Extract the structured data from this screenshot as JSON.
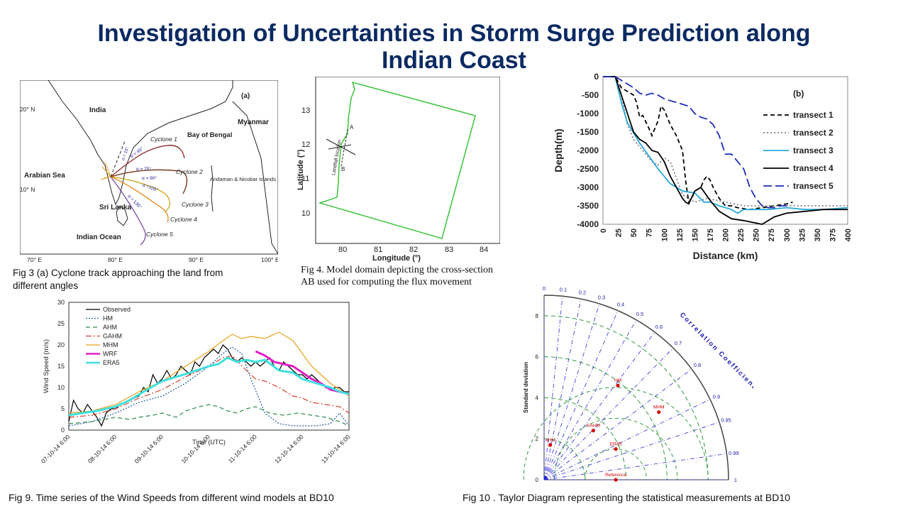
{
  "slide": {
    "title_line1": "Investigation of Uncertainties in Storm Surge Prediction along",
    "title_line2": "Indian Coast"
  },
  "fig3": {
    "caption": "Fig 3 (a) Cyclone track approaching the land from different angles",
    "panel_label": "(a)",
    "lat_ticks": [
      "20° N",
      "10° N"
    ],
    "lon_ticks": [
      "70° E",
      "80° E",
      "90° E",
      "100° E"
    ],
    "places": [
      "India",
      "Myanmar",
      "Bay of Bengal",
      "Arabian Sea",
      "Sri Lanka",
      "Indian Ocean",
      "Andaman & Nicobar Islands"
    ],
    "cyclones": [
      "Cyclone 1",
      "Cyclone 2",
      "Cyclone 3",
      "Cyclone 4",
      "Cyclone 5"
    ],
    "angles": [
      "α = 15°",
      "α = 45°",
      "α = 75°",
      "α = 90°",
      "α =105°",
      "α = 135°"
    ],
    "colors": {
      "c1": "#8b1a1a",
      "c2": "#6b2c10",
      "c3": "#c8a41a",
      "c4": "#e08a1a",
      "c5": "#7b4aa8",
      "land": "#ffffff"
    }
  },
  "fig4": {
    "caption": "Fig 4. Model domain depicting the cross-section AB used for computing the flux movement",
    "xlabel": "Longitude (°)",
    "ylabel": "Latitude (°)",
    "x_ticks": [
      "80",
      "81",
      "82",
      "83",
      "84"
    ],
    "y_ticks": [
      "13",
      "12",
      "11",
      "10"
    ],
    "landfall_label": "Landfall location",
    "point_a": "A",
    "point_b": "B",
    "domain_color": "#2dbf2d"
  },
  "depth_chart": {
    "caption_label": "(b)",
    "chart_data": {
      "type": "line",
      "xlabel": "Distance (km)",
      "ylabel": "Depth(m)",
      "xlim": [
        0,
        400
      ],
      "ylim": [
        -4000,
        0
      ],
      "x_ticks": [
        0,
        25,
        50,
        75,
        100,
        125,
        150,
        175,
        200,
        225,
        250,
        275,
        300,
        325,
        350,
        375,
        400
      ],
      "y_ticks": [
        0,
        -500,
        -1000,
        -1500,
        -2000,
        -2500,
        -3000,
        -3500,
        -4000
      ],
      "legend_position": "right",
      "series": [
        {
          "name": "transect 1",
          "color": "#000000",
          "dash": "6,4",
          "x": [
            0,
            20,
            30,
            40,
            50,
            55,
            60,
            65,
            75,
            80,
            85,
            90,
            95,
            100,
            110,
            120,
            130,
            135,
            140,
            145,
            150,
            160,
            165,
            170,
            175,
            180,
            190,
            200,
            210,
            220,
            240,
            260,
            280,
            300,
            310
          ],
          "y": [
            0,
            0,
            -300,
            -400,
            -500,
            -700,
            -1100,
            -1050,
            -1400,
            -1600,
            -1400,
            -1200,
            -800,
            -900,
            -1300,
            -1600,
            -2000,
            -2800,
            -3400,
            -3300,
            -3100,
            -3000,
            -2800,
            -2700,
            -2800,
            -3000,
            -3300,
            -3500,
            -3500,
            -3550,
            -3600,
            -3550,
            -3500,
            -3450,
            -3400
          ]
        },
        {
          "name": "transect 2",
          "color": "#808080",
          "dash": "2,3",
          "x": [
            0,
            20,
            30,
            40,
            50,
            60,
            80,
            90,
            100,
            110,
            130,
            150,
            170,
            200,
            230,
            260,
            300,
            350,
            400
          ],
          "y": [
            0,
            0,
            -500,
            -1300,
            -1700,
            -1900,
            -2300,
            -2400,
            -2200,
            -2300,
            -3200,
            -3400,
            -3300,
            -3400,
            -3500,
            -3500,
            -3500,
            -3500,
            -3500
          ]
        },
        {
          "name": "transect 3",
          "color": "#29a8d8",
          "dash": "",
          "x": [
            0,
            20,
            30,
            40,
            60,
            90,
            110,
            130,
            150,
            165,
            175,
            190,
            210,
            220,
            230,
            250,
            270,
            300,
            330,
            360,
            400
          ],
          "y": [
            0,
            0,
            -700,
            -1250,
            -1800,
            -2500,
            -2900,
            -3100,
            -3150,
            -3400,
            -3400,
            -3500,
            -3600,
            -3700,
            -3600,
            -3600,
            -3600,
            -3550,
            -3600,
            -3600,
            -3550
          ]
        },
        {
          "name": "transect 4",
          "color": "#000000",
          "dash": "",
          "x": [
            0,
            20,
            30,
            40,
            50,
            60,
            70,
            80,
            90,
            100,
            110,
            120,
            130,
            135,
            140,
            150,
            160,
            175,
            190,
            210,
            230,
            260,
            280,
            300,
            330,
            360,
            400
          ],
          "y": [
            0,
            0,
            -500,
            -1000,
            -1500,
            -1700,
            -1800,
            -2000,
            -2050,
            -2300,
            -2700,
            -3000,
            -3300,
            -3400,
            -3450,
            -3100,
            -3000,
            -3350,
            -3650,
            -3850,
            -3900,
            -4000,
            -3800,
            -3700,
            -3650,
            -3600,
            -3600
          ]
        },
        {
          "name": "transect 5",
          "color": "#1f2fb8",
          "dash": "12,5",
          "x": [
            0,
            20,
            30,
            40,
            50,
            60,
            70,
            80,
            90,
            100,
            110,
            120,
            140,
            150,
            160,
            170,
            180,
            190,
            200,
            210,
            220,
            230,
            240,
            250,
            260,
            270,
            280,
            290,
            300
          ],
          "y": [
            0,
            0,
            -100,
            -200,
            -300,
            -450,
            -500,
            -450,
            -500,
            -600,
            -650,
            -700,
            -800,
            -1000,
            -1100,
            -1150,
            -1300,
            -1600,
            -2100,
            -2100,
            -2300,
            -2500,
            -3000,
            -3300,
            -3500,
            -3550,
            -3550,
            -3500,
            -3500
          ]
        }
      ]
    }
  },
  "wind_chart": {
    "caption": "Fig 9.  Time series of the Wind Speeds from different wind models at BD10",
    "chart_data": {
      "type": "line",
      "xlabel": "Time (UTC)",
      "ylabel": "Wind Speed (m/s)",
      "ylim": [
        0,
        30
      ],
      "y_ticks": [
        0,
        5,
        10,
        15,
        20,
        25,
        30
      ],
      "x_ticks": [
        "07-10-14 6:00",
        "08-10-14 6:00",
        "09-10-14 6:00",
        "10-10-14 6:00",
        "11-10-14 6:00",
        "12-10-14 6:00",
        "13-10-14 6:00"
      ],
      "xlim_days": [
        0,
        6
      ],
      "legend_position": "top-left",
      "series": [
        {
          "name": "Observed",
          "color": "#000000",
          "dash": "",
          "x": [
            0,
            0.1,
            0.2,
            0.3,
            0.4,
            0.5,
            0.6,
            0.7,
            0.8,
            0.9,
            1.0,
            1.1,
            1.2,
            1.3,
            1.4,
            1.5,
            1.6,
            1.7,
            1.8,
            1.9,
            2.0,
            2.1,
            2.2,
            2.3,
            2.4,
            2.5,
            2.6,
            2.7,
            2.8,
            2.9,
            3.0,
            3.1,
            3.2,
            3.3,
            3.4,
            3.5,
            3.6,
            3.7,
            3.8,
            3.9,
            4.0,
            4.1,
            4.2,
            4.3,
            4.4,
            4.5,
            4.6,
            4.7,
            4.8,
            4.9,
            5.0,
            5.1,
            5.2,
            5.3,
            5.4,
            5.5,
            5.6,
            5.7,
            5.8,
            5.9,
            6.0
          ],
          "y": [
            2,
            7,
            5,
            4,
            6,
            4.5,
            3,
            1,
            4,
            5,
            5,
            6,
            6.5,
            7,
            7.5,
            8,
            10,
            9,
            13,
            11,
            12,
            14,
            12,
            13,
            15,
            14,
            13,
            16,
            15,
            17,
            18,
            19,
            18,
            20,
            19,
            17,
            16,
            17,
            16,
            15,
            16,
            15,
            16,
            17,
            15,
            14,
            16,
            15,
            14,
            13,
            13,
            12,
            13,
            12,
            11,
            10,
            9.5,
            10,
            10,
            9,
            9
          ]
        },
        {
          "name": "HM",
          "color": "#1f5fa8",
          "dash": "2,2",
          "x": [
            0,
            0.5,
            1.0,
            1.5,
            2.0,
            2.5,
            3.0,
            3.3,
            3.5,
            3.7,
            3.9,
            4.2,
            4.5,
            4.8,
            5.0,
            5.3,
            5.6,
            5.8,
            6.0
          ],
          "y": [
            1,
            2,
            4,
            6.5,
            8,
            11,
            15,
            18,
            19.5,
            18,
            12,
            4,
            1.5,
            1,
            1,
            1,
            1.5,
            4,
            1
          ]
        },
        {
          "name": "AHM",
          "color": "#2e8b4a",
          "dash": "6,4",
          "x": [
            0,
            0.5,
            1.0,
            1.3,
            1.5,
            1.8,
            2.0,
            2.3,
            2.5,
            2.8,
            3.0,
            3.2,
            3.4,
            3.6,
            3.8,
            4.0,
            4.3,
            4.6,
            4.9,
            5.2,
            5.5,
            5.8,
            6.0
          ],
          "y": [
            1.5,
            2,
            3,
            2.5,
            3,
            3.5,
            4,
            3,
            4.5,
            5.5,
            6,
            5.5,
            4.5,
            4,
            5,
            5.5,
            4,
            3.5,
            4,
            3.5,
            3,
            2,
            1
          ]
        },
        {
          "name": "GAHM",
          "color": "#d2402b",
          "dash": "8,3,2,3",
          "x": [
            0,
            0.5,
            1.0,
            1.5,
            2.0,
            2.5,
            3.0,
            3.3,
            3.5,
            3.8,
            4.0,
            4.2,
            4.5,
            4.8,
            5.0,
            5.2,
            5.5,
            5.8,
            6.0
          ],
          "y": [
            3,
            3.5,
            5,
            7.5,
            9.5,
            12.5,
            15,
            17,
            17.5,
            14,
            12,
            11.5,
            10,
            8,
            7.5,
            6.5,
            6,
            5.5,
            4
          ]
        },
        {
          "name": "MHM",
          "color": "#e8a21a",
          "dash": "",
          "x": [
            0,
            0.5,
            1.0,
            1.5,
            2.0,
            2.5,
            3.0,
            3.3,
            3.5,
            3.7,
            3.9,
            4.2,
            4.5,
            4.8,
            5.0,
            5.2,
            5.4,
            5.6,
            5.8,
            6.0
          ],
          "y": [
            4,
            4.5,
            6,
            9,
            11.5,
            15,
            18.5,
            21,
            22.5,
            21.5,
            22,
            21.5,
            23,
            21,
            18,
            15,
            13,
            11,
            9.5,
            8
          ]
        },
        {
          "name": "WRF",
          "color": "#e020c8",
          "dash": "",
          "x": [
            4.0,
            4.2,
            4.4,
            4.6,
            4.8,
            5.0,
            5.2,
            5.4,
            5.6,
            5.8,
            6.0
          ],
          "y": [
            18.5,
            17.5,
            16,
            15.5,
            15,
            13.5,
            12,
            11,
            9.5,
            9,
            8.5
          ]
        },
        {
          "name": "ERA5",
          "color": "#3ee0e0",
          "dash": "",
          "x": [
            0,
            0.3,
            0.6,
            1.0,
            1.3,
            1.6,
            2.0,
            2.3,
            2.6,
            3.0,
            3.2,
            3.4,
            3.6,
            3.8,
            4.0,
            4.2,
            4.5,
            4.8,
            5.0,
            5.3,
            5.6,
            5.8,
            6.0
          ],
          "y": [
            3.5,
            4,
            4.5,
            5.5,
            7,
            9,
            11.5,
            12.5,
            13.5,
            15,
            15.5,
            17,
            16,
            16.5,
            16,
            16.5,
            14,
            13.5,
            12,
            11,
            10,
            9,
            8.5
          ]
        }
      ]
    }
  },
  "taylor_chart": {
    "caption": "Fig 10 .  Taylor Diagram representing the statistical measurements at BD10",
    "chart_data": {
      "type": "scatter",
      "ylabel": "Standard deviation",
      "arc_label": "Correlation Coefficient",
      "std_ticks": [
        0,
        2,
        4,
        6,
        8
      ],
      "corr_ticks": [
        "0",
        "0.1",
        "0.2",
        "0.3",
        "0.4",
        "0.5",
        "0.6",
        "0.7",
        "0.8",
        "0.9",
        "0.95",
        "0.99",
        "1"
      ],
      "points": [
        {
          "name": "HM",
          "x": 3.6,
          "y": 4.6,
          "color": "#d00000"
        },
        {
          "name": "MHM",
          "x": 5.6,
          "y": 3.3,
          "color": "#d00000"
        },
        {
          "name": "GAHM",
          "x": 2.4,
          "y": 2.4,
          "color": "#d00000"
        },
        {
          "name": "ERA5",
          "x": 3.5,
          "y": 1.5,
          "color": "#d00000"
        },
        {
          "name": "AHM",
          "x": 0.3,
          "y": 1.7,
          "color": "#d00000"
        },
        {
          "name": "Reference",
          "x": 3.5,
          "y": 0,
          "color": "#d00000"
        }
      ]
    }
  }
}
